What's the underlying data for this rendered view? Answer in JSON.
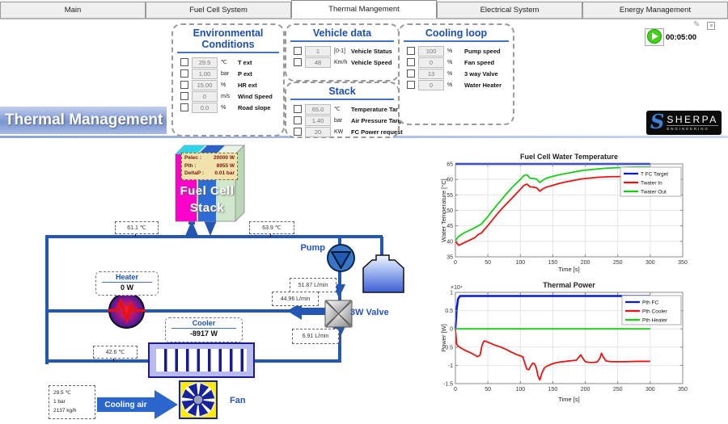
{
  "tabs": [
    {
      "label": "Main",
      "active": false
    },
    {
      "label": "Fuel Cell System",
      "active": false
    },
    {
      "label": "Thermal Mangement",
      "active": true
    },
    {
      "label": "Electrical System",
      "active": false
    },
    {
      "label": "Energy Management",
      "active": false
    }
  ],
  "toolbar": {
    "timer": "00:05:00",
    "edit_icon": "✎"
  },
  "banner": {
    "title": "Thermal Management"
  },
  "logo": {
    "name": "SHERPA",
    "sub": "ENGINEERING",
    "monogram": "S"
  },
  "panels": {
    "environmental": {
      "title": "Environmental Conditions",
      "rows": [
        {
          "value": "29.5",
          "unit": "℃",
          "label": "T ext"
        },
        {
          "value": "1.00",
          "unit": "bar",
          "label": "P ext"
        },
        {
          "value": "15.00",
          "unit": "%",
          "label": "HR ext"
        },
        {
          "value": "0",
          "unit": "m/s",
          "label": "Wind Speed"
        },
        {
          "value": "0.0",
          "unit": "%",
          "label": "Road slope"
        }
      ]
    },
    "vehicle": {
      "title": "Vehicle data",
      "rows": [
        {
          "value": "1",
          "unit": "[0-1]",
          "label": "Vehicle Status"
        },
        {
          "value": "48",
          "unit": "Km/h",
          "label": "Vehicle Speed"
        }
      ]
    },
    "stack": {
      "title": "Stack",
      "rows": [
        {
          "value": "65.0",
          "unit": "℃",
          "label": "Temperature Target"
        },
        {
          "value": "1.40",
          "unit": "bar",
          "label": "Air Pressure Target"
        },
        {
          "value": "20",
          "unit": "KW",
          "label": "FC Power request"
        }
      ]
    },
    "cooling": {
      "title": "Cooling loop",
      "rows": [
        {
          "value": "100",
          "unit": "%",
          "label": "Pump speed"
        },
        {
          "value": "0",
          "unit": "%",
          "label": "Fan speed"
        },
        {
          "value": "13",
          "unit": "%",
          "label": "3 way Valve"
        },
        {
          "value": "0",
          "unit": "%",
          "label": "Water Heater"
        }
      ]
    }
  },
  "diagram": {
    "stack_block": {
      "line1": "Fuel Cell",
      "line2": "Stack",
      "info": [
        {
          "label": "Pelec :",
          "value": "20000 W"
        },
        {
          "label": "Pth :",
          "value": "8955 W"
        },
        {
          "label": "DeltaP :",
          "value": "0.01 bar"
        }
      ]
    },
    "labels": {
      "pump": "Pump",
      "valve": "3W Valve",
      "fan": "Fan",
      "cooling_air": "Cooling air"
    },
    "heater": {
      "title": "Heater",
      "value": "0 W"
    },
    "cooler": {
      "title": "Cooler",
      "value": "-8917 W"
    },
    "measurements": {
      "stack_in": "61.1 ℃",
      "stack_out": "63.9 ℃",
      "radiator_out": "42.6 ℃",
      "pump_flow": "51.87 L/min",
      "bypass_flow": "44.96 L/min",
      "radiator_flow": "6.91 L/min"
    },
    "air_inlet": [
      "29.5 ℃",
      "1 bar",
      "2137 kg/h"
    ]
  },
  "chart_data": [
    {
      "type": "line",
      "title": "Fuel Cell Water Temperature",
      "xlabel": "Time [s]",
      "ylabel": "Water Temperature [°C]",
      "xlim": [
        0,
        350
      ],
      "ylim": [
        35,
        65
      ],
      "xticks": [
        0,
        50,
        100,
        150,
        200,
        250,
        300,
        350
      ],
      "yticks": [
        35,
        40,
        45,
        50,
        55,
        60,
        65
      ],
      "grid": true,
      "legend_position": "northeast",
      "series": [
        {
          "name": "T FC Target",
          "color": "#0018ee",
          "width": 2.5,
          "x": [
            0,
            300
          ],
          "y": [
            65,
            65
          ]
        },
        {
          "name": "Twater  In",
          "color": "#ee1111",
          "width": 1.8,
          "x": [
            0,
            5,
            10,
            15,
            20,
            25,
            30,
            35,
            40,
            45,
            50,
            55,
            60,
            65,
            70,
            75,
            80,
            85,
            90,
            95,
            100,
            105,
            110,
            115,
            120,
            125,
            130,
            135,
            140,
            150,
            160,
            170,
            180,
            190,
            200,
            210,
            220,
            230,
            240,
            250,
            260,
            280,
            300
          ],
          "y": [
            40.0,
            38.7,
            39.2,
            39.7,
            40.2,
            40.7,
            41.2,
            42.2,
            42.7,
            43.9,
            45.1,
            46.4,
            47.7,
            49.0,
            50.2,
            51.3,
            52.4,
            53.5,
            54.6,
            55.7,
            56.8,
            58.0,
            58.5,
            57.6,
            57.5,
            57.3,
            56.2,
            57.0,
            57.5,
            58.1,
            58.7,
            59.2,
            59.6,
            60.0,
            60.3,
            60.5,
            60.7,
            60.8,
            60.9,
            60.9,
            61.0,
            61.0,
            61.0
          ]
        },
        {
          "name": "Twater  Out",
          "color": "#15cf15",
          "width": 1.8,
          "x": [
            0,
            5,
            10,
            15,
            20,
            25,
            30,
            35,
            40,
            45,
            50,
            55,
            60,
            65,
            70,
            75,
            80,
            85,
            90,
            95,
            100,
            105,
            110,
            115,
            120,
            125,
            130,
            135,
            140,
            150,
            160,
            170,
            180,
            190,
            200,
            210,
            220,
            230,
            240,
            250,
            260,
            280,
            300
          ],
          "y": [
            40.3,
            41.6,
            42.3,
            42.9,
            43.4,
            43.9,
            44.4,
            45.0,
            45.6,
            46.8,
            48.0,
            49.4,
            50.7,
            52.0,
            53.2,
            54.5,
            55.7,
            56.9,
            58.0,
            59.0,
            60.0,
            61.2,
            61.5,
            60.4,
            60.3,
            60.1,
            59.0,
            59.8,
            60.4,
            61.0,
            61.5,
            61.9,
            62.3,
            62.7,
            63.0,
            63.2,
            63.4,
            63.6,
            63.7,
            63.8,
            63.9,
            64.0,
            64.0
          ]
        }
      ]
    },
    {
      "type": "line",
      "title": "Thermal Power",
      "xlabel": "Time [s]",
      "ylabel": "Power [W]",
      "y_exponent_label": "×10⁴",
      "xlim": [
        0,
        350
      ],
      "ylim": [
        -1.5,
        1
      ],
      "xticks": [
        0,
        50,
        100,
        150,
        200,
        250,
        300,
        350
      ],
      "yticks": [
        -1.5,
        -1,
        -0.5,
        0,
        0.5,
        1
      ],
      "grid": true,
      "legend_position": "northeast",
      "series": [
        {
          "name": "Pth  FC",
          "color": "#0018ee",
          "width": 2.5,
          "x": [
            0,
            2,
            4,
            7,
            300
          ],
          "y": [
            0,
            0.55,
            0.82,
            0.9,
            0.9
          ]
        },
        {
          "name": "Pth  Cooler",
          "color": "#ee1111",
          "width": 1.8,
          "x": [
            0,
            2,
            4,
            8,
            12,
            16,
            20,
            25,
            30,
            34,
            38,
            41,
            44,
            48,
            52,
            56,
            60,
            65,
            70,
            75,
            80,
            85,
            90,
            95,
            100,
            104,
            107,
            110,
            113,
            116,
            119,
            122,
            125,
            127,
            130,
            133,
            137,
            141,
            145,
            150,
            155,
            160,
            170,
            180,
            186,
            190,
            193,
            196,
            200,
            206,
            212,
            218,
            222,
            225,
            228,
            232,
            240,
            250,
            260,
            280,
            300
          ],
          "y": [
            0,
            -0.42,
            -0.47,
            -0.52,
            -0.56,
            -0.6,
            -0.63,
            -0.67,
            -0.72,
            -0.76,
            -0.72,
            -0.45,
            -0.33,
            -0.35,
            -0.38,
            -0.41,
            -0.44,
            -0.47,
            -0.5,
            -0.54,
            -0.58,
            -0.63,
            -0.67,
            -0.71,
            -0.74,
            -0.77,
            -0.95,
            -1.1,
            -1.12,
            -1.02,
            -0.94,
            -0.96,
            -1.1,
            -1.28,
            -1.4,
            -1.22,
            -1.07,
            -1.02,
            -0.99,
            -0.95,
            -0.93,
            -0.91,
            -0.89,
            -0.87,
            -0.86,
            -0.78,
            -0.71,
            -0.8,
            -0.9,
            -0.92,
            -0.92,
            -0.91,
            -0.82,
            -0.67,
            -0.78,
            -0.88,
            -0.9,
            -0.9,
            -0.9,
            -0.89,
            -0.89
          ]
        },
        {
          "name": "Pth  Heater",
          "color": "#15cf15",
          "width": 1.8,
          "x": [
            0,
            300
          ],
          "y": [
            0,
            0
          ]
        }
      ]
    }
  ],
  "colors": {
    "accent_blue": "#1c4fae",
    "pipe_blue": "#2456b4",
    "panel_rule": "#4472c4",
    "play_green": "#3ed314",
    "stack_magenta": "#ff00cc",
    "stack_blue": "#2d6cd6"
  }
}
